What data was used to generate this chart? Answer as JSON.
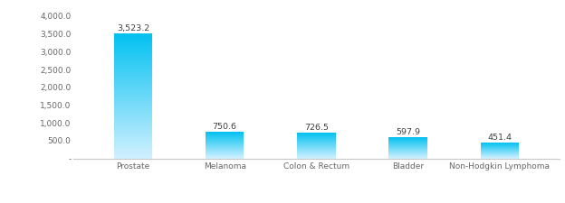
{
  "categories": [
    "Prostate",
    "Melanoma",
    "Colon & Rectum",
    "Bladder",
    "Non-Hodgkin Lymphoma"
  ],
  "values": [
    3523.2,
    750.6,
    726.5,
    597.9,
    451.4
  ],
  "labels": [
    "3,523.2",
    "750.6",
    "726.5",
    "597.9",
    "451.4"
  ],
  "bar_color_top": "#00c0f0",
  "bar_color_bottom": "#d0f0ff",
  "ylim": [
    0,
    4000
  ],
  "yticks": [
    0,
    500,
    1000,
    1500,
    2000,
    2500,
    3000,
    3500,
    4000
  ],
  "ytick_labels": [
    "-",
    "500.0",
    "1,000.0",
    "1,500.0",
    "2,000.0",
    "2,500.0",
    "3,000.0",
    "3,500.0",
    "4,000.0"
  ],
  "background_color": "#ffffff",
  "label_fontsize": 6.8,
  "tick_fontsize": 6.5,
  "bar_width": 0.42,
  "label_color": "#404040"
}
